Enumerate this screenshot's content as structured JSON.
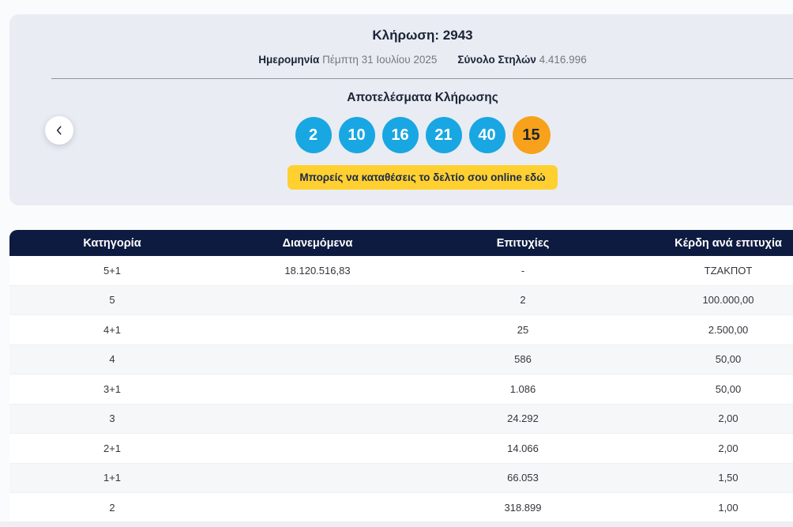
{
  "draw": {
    "title": "Κλήρωση: 2943",
    "date_label": "Ημερομηνία",
    "date_value": "Πέμπτη 31 Ιουλίου 2025",
    "columns_label": "Σύνολο Στηλών",
    "columns_value": "4.416.996",
    "results_heading": "Αποτελέσματα Κλήρωσης",
    "numbers": [
      "2",
      "10",
      "16",
      "21",
      "40"
    ],
    "bonus_number": "15",
    "cta_label": "Μπορείς να καταθέσεις το δελτίο σου online εδώ",
    "prev_icon": "‹"
  },
  "colors": {
    "ball_blue": "#18a7e2",
    "ball_bonus_orange": "#f7a21a",
    "cta_yellow": "#ffd02f",
    "table_header_navy": "#0e1b40",
    "card_background": "#e9ecf3"
  },
  "table": {
    "headers": [
      "Κατηγορία",
      "Διανεμόμενα",
      "Επιτυχίες",
      "Κέρδη ανά επιτυχία"
    ],
    "rows": [
      [
        "5+1",
        "18.120.516,83",
        "-",
        "ΤΖΑΚΠΟΤ"
      ],
      [
        "5",
        "",
        "2",
        "100.000,00"
      ],
      [
        "4+1",
        "",
        "25",
        "2.500,00"
      ],
      [
        "4",
        "",
        "586",
        "50,00"
      ],
      [
        "3+1",
        "",
        "1.086",
        "50,00"
      ],
      [
        "3",
        "",
        "24.292",
        "2,00"
      ],
      [
        "2+1",
        "",
        "14.066",
        "2,00"
      ],
      [
        "1+1",
        "",
        "66.053",
        "1,50"
      ],
      [
        "2",
        "",
        "318.899",
        "1,00"
      ]
    ]
  }
}
